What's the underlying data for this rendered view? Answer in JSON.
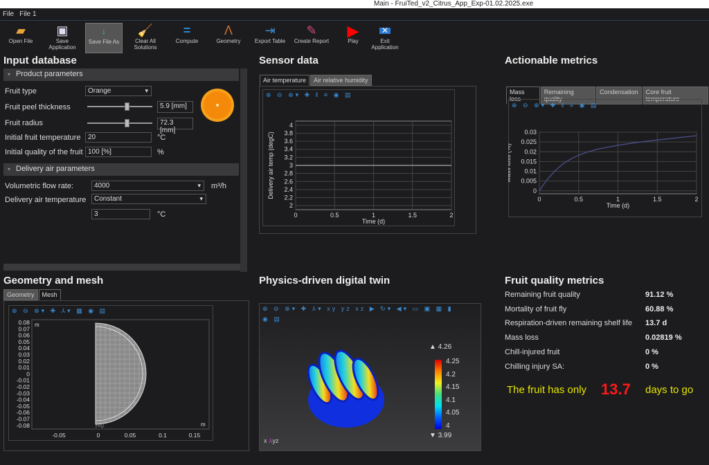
{
  "window": {
    "title": "Main - FruiTed_v2_Citrus_App_Exp-01.02.2025.exe"
  },
  "menu": [
    "File",
    "File 1"
  ],
  "toolbar": [
    {
      "label": "Open File",
      "icon": "folder-icon"
    },
    {
      "label": "Save Application",
      "icon": "save-icon"
    },
    {
      "label": "Save File As",
      "icon": "save-as-icon"
    },
    {
      "label": "Clear All Solutions",
      "icon": "broom-icon"
    },
    {
      "label": "Compute",
      "icon": "equals-icon"
    },
    {
      "label": "Geometry",
      "icon": "compass-icon"
    },
    {
      "label": "Export Table",
      "icon": "export-icon"
    },
    {
      "label": "Create Report",
      "icon": "report-icon"
    },
    {
      "label": "Play",
      "icon": "play-icon"
    },
    {
      "label": "Exit Application",
      "icon": "exit-icon"
    }
  ],
  "input": {
    "title": "Input database",
    "product_section": "Product parameters",
    "fruit_type": {
      "label": "Fruit type",
      "value": "Orange"
    },
    "peel": {
      "label": "Fruit peel thickness",
      "value": "5.9 [mm]",
      "slider_fraction": 0.62
    },
    "radius": {
      "label": "Fruit radius",
      "value": "72.3 [mm]",
      "slider_fraction": 0.62
    },
    "init_temp": {
      "label": "Initial fruit temperature",
      "value": "20",
      "unit": "°C"
    },
    "init_quality": {
      "label": "Initial quality of the fruit",
      "value": "100 [%]",
      "unit": "%"
    },
    "air_section": "Delivery air parameters",
    "flow": {
      "label": "Volumetric flow rate:",
      "value": "4000",
      "unit": "m³/h"
    },
    "air_temp": {
      "label": "Delivery air temperature",
      "value": "Constant"
    },
    "air_temp_value": {
      "value": "3",
      "unit": "°C"
    }
  },
  "sensor": {
    "title": "Sensor data",
    "tabs": [
      "Air temperature",
      "Air relative humidity"
    ]
  },
  "metrics": {
    "title": "Actionable metrics",
    "tabs": [
      "Mass loss",
      "Remaining quality",
      "Condensation",
      "Core fruit temperature"
    ]
  },
  "geometry": {
    "title": "Geometry and mesh",
    "tabs": [
      "Geometry",
      "Mesh"
    ],
    "unit": "m",
    "axis_label": "r=0",
    "yticks": [
      "0.08",
      "0.07",
      "0.06",
      "0.05",
      "0.04",
      "0.03",
      "0.02",
      "0.01",
      "0",
      "-0.01",
      "-0.02",
      "-0.03",
      "-0.04",
      "-0.05",
      "-0.06",
      "-0.07",
      "-0.08"
    ],
    "xticks": [
      "-0.05",
      "0",
      "0.05",
      "0.1",
      "0.15"
    ]
  },
  "twin": {
    "title": "Physics-driven digital twin",
    "max": "▲ 4.26",
    "min": "▼ 3.99",
    "legend": [
      "4.25",
      "4.2",
      "4.15",
      "4.1",
      "4.05",
      "4"
    ],
    "axes": [
      "x",
      "y",
      "z"
    ]
  },
  "quality": {
    "title": "Fruit quality metrics",
    "rows": [
      {
        "label": "Remaining fruit quality",
        "value": "91.12 %"
      },
      {
        "label": "Mortality of fruit fly",
        "value": "60.88 %"
      },
      {
        "label": "Respiration-driven remaining shelf life",
        "value": "13.7 d"
      },
      {
        "label": "Mass loss",
        "value": "0.02819 %"
      },
      {
        "label": "Chill-injured fruit",
        "value": "0 %"
      },
      {
        "label": "Chilling injury SA:",
        "value": "0 %"
      }
    ],
    "message_pre": "The fruit has only",
    "message_value": "13.7",
    "message_post": "days to go",
    "colors": {
      "message": "#e6e600",
      "value": "#ff1a1a"
    }
  },
  "chart_data": [
    {
      "type": "line",
      "xlabel": "Time (d)",
      "ylabel": "Delivery air temp (degC)",
      "xlim": [
        0,
        2
      ],
      "ylim": [
        1.9,
        4.1
      ],
      "xticks": [
        0,
        0.5,
        1,
        1.5,
        2
      ],
      "yticks": [
        2,
        2.2,
        2.4,
        2.6,
        2.8,
        3,
        3.2,
        3.4,
        3.6,
        3.8,
        4
      ],
      "grid": true,
      "x": [
        0,
        2
      ],
      "y": [
        3,
        3
      ],
      "color": "#aaaaaa"
    },
    {
      "type": "line",
      "xlabel": "Time (d)",
      "ylabel": "Mass loss (%)",
      "xlim": [
        0,
        2
      ],
      "ylim": [
        -0.0015,
        0.03
      ],
      "xticks": [
        0,
        0.5,
        1,
        1.5,
        2
      ],
      "yticks": [
        0,
        0.005,
        0.01,
        0.015,
        0.02,
        0.025,
        0.03
      ],
      "grid": true,
      "x": [
        0,
        0.05,
        0.1,
        0.2,
        0.3,
        0.4,
        0.5,
        0.6,
        0.75,
        1,
        1.25,
        1.5,
        1.75,
        2
      ],
      "y": [
        0,
        0.003,
        0.0058,
        0.0102,
        0.0138,
        0.0163,
        0.0182,
        0.0197,
        0.0214,
        0.0233,
        0.0248,
        0.026,
        0.0271,
        0.0282
      ],
      "color": "#4a4f8a"
    }
  ]
}
